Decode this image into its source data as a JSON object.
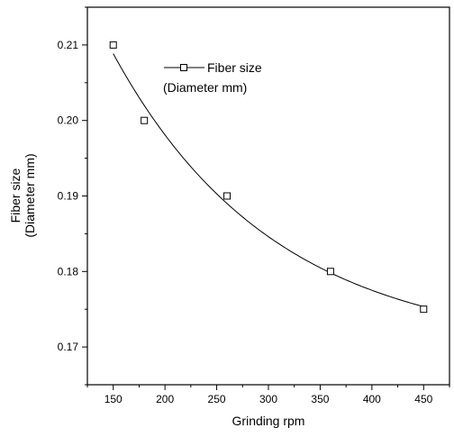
{
  "chart_data": {
    "type": "scatter",
    "title": "",
    "xlabel": "Grinding rpm",
    "ylabel_lines": [
      "Fiber size",
      "(Diameter mm)"
    ],
    "xlim": [
      125,
      475
    ],
    "ylim": [
      0.165,
      0.215
    ],
    "x_ticks": [
      150,
      200,
      250,
      300,
      350,
      400,
      450
    ],
    "x_tick_labels": [
      "150",
      "200",
      "250",
      "300",
      "350",
      "400",
      "450"
    ],
    "y_ticks": [
      0.17,
      0.18,
      0.19,
      0.2,
      0.21
    ],
    "y_tick_labels": [
      "0.17",
      "0.18",
      "0.19",
      "0.20",
      "0.21"
    ],
    "grid": false,
    "legend_position": "top-center",
    "legend_lines": [
      "Fiber size",
      "(Diameter mm)"
    ],
    "series": [
      {
        "name": "Fiber size (Diameter mm)",
        "marker": "open-square",
        "fit_curve": "smooth decreasing",
        "x": [
          150,
          180,
          260,
          360,
          450
        ],
        "y": [
          0.21,
          0.2,
          0.19,
          0.18,
          0.175
        ]
      }
    ]
  }
}
